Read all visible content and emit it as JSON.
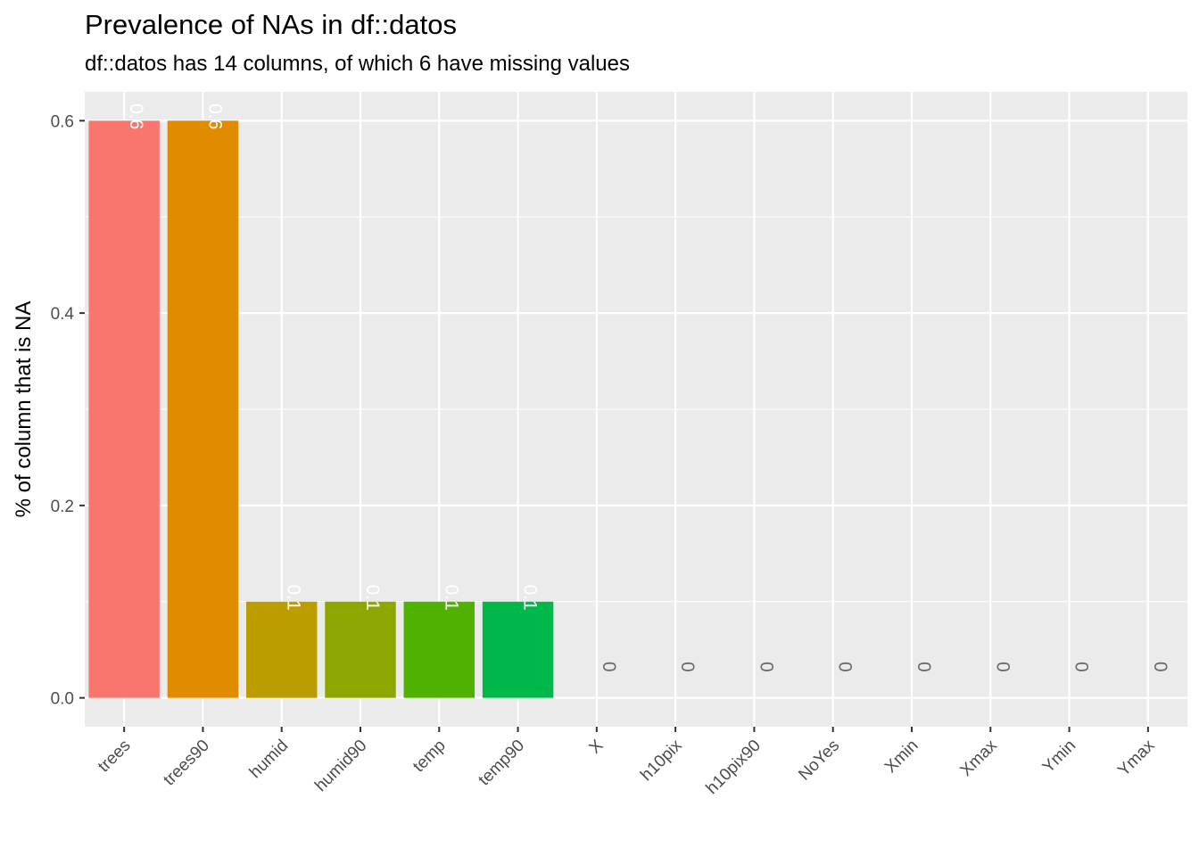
{
  "chart_data": {
    "type": "bar",
    "title": "Prevalence of NAs in df::datos",
    "subtitle": "df::datos has 14 columns, of which 6 have missing values",
    "xlabel": "",
    "ylabel": "% of column that is NA",
    "ylim": [
      -0.03,
      0.63
    ],
    "yticks": [
      "0.0",
      "0.2",
      "0.4",
      "0.6"
    ],
    "categories": [
      "trees",
      "trees90",
      "humid",
      "humid90",
      "temp",
      "temp90",
      "X",
      "h10pix",
      "h10pix90",
      "NoYes",
      "Xmin",
      "Xmax",
      "Ymin",
      "Ymax"
    ],
    "values": [
      0.6,
      0.6,
      0.1,
      0.1,
      0.1,
      0.1,
      0,
      0,
      0,
      0,
      0,
      0,
      0,
      0
    ],
    "labels": [
      "0.6",
      "0.6",
      "0.1",
      "0.1",
      "0.1",
      "0.1",
      "0",
      "0",
      "0",
      "0",
      "0",
      "0",
      "0",
      "0"
    ],
    "colors": [
      "#F8766D",
      "#E08B00",
      "#BB9D00",
      "#8FA600",
      "#4FB200",
      "#00B84A",
      "#00BE7D",
      "#00C0A8",
      "#00BFC4",
      "#00BAE0",
      "#00A5FF",
      "#A58AFF",
      "#E76BF3",
      "#FF61C3"
    ],
    "panel_background": "#EBEBEB",
    "grid": true,
    "legend": "none"
  }
}
